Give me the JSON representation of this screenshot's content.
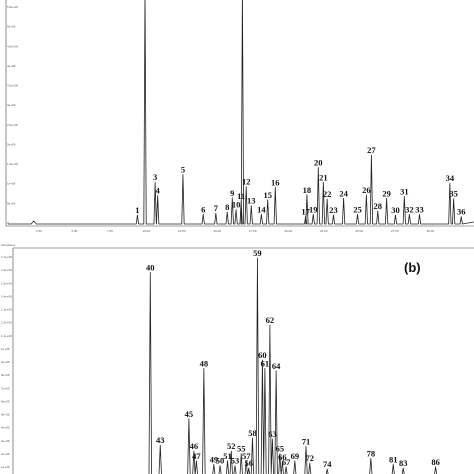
{
  "chart_data": [
    {
      "type": "line",
      "panel": "a",
      "panel_label": "",
      "y_tick_labels": [
        "5.5e+06",
        "5e+06",
        "4.5e+06",
        "4e+06",
        "3.5e+06",
        "3e+06",
        "2.5e+06",
        "2e+06",
        "1.5e+06",
        "1e+06",
        "5e+05",
        "0"
      ],
      "x_tick_labels": [
        "2.50",
        "5.00",
        "7.50",
        "10.00",
        "12.50",
        "15.00",
        "17.50",
        "20.00",
        "22.50",
        "25.00",
        "27.50",
        "30.00"
      ],
      "xlim": [
        0,
        32
      ],
      "ylim": [
        0,
        5800000
      ],
      "peaks": [
        {
          "label": "1",
          "x": 9.6,
          "y": 280000
        },
        {
          "label": "",
          "x": 10.2,
          "y": 9999999
        },
        {
          "label": "3",
          "x": 11.0,
          "y": 1130000
        },
        {
          "label": "4",
          "x": 11.2,
          "y": 780000
        },
        {
          "label": "5",
          "x": 13.2,
          "y": 1320000
        },
        {
          "label": "6",
          "x": 14.8,
          "y": 300000
        },
        {
          "label": "7",
          "x": 15.8,
          "y": 330000
        },
        {
          "label": "8",
          "x": 16.7,
          "y": 360000
        },
        {
          "label": "9",
          "x": 17.1,
          "y": 720000
        },
        {
          "label": "10",
          "x": 17.4,
          "y": 420000
        },
        {
          "label": "",
          "x": 17.9,
          "y": 9999999
        },
        {
          "label": "11",
          "x": 17.8,
          "y": 640000
        },
        {
          "label": "12",
          "x": 18.2,
          "y": 1010000
        },
        {
          "label": "13",
          "x": 18.6,
          "y": 520000
        },
        {
          "label": "14",
          "x": 19.4,
          "y": 300000
        },
        {
          "label": "15",
          "x": 19.9,
          "y": 670000
        },
        {
          "label": "16",
          "x": 20.5,
          "y": 990000
        },
        {
          "label": "17",
          "x": 22.9,
          "y": 250000
        },
        {
          "label": "18",
          "x": 23.0,
          "y": 800000
        },
        {
          "label": "19",
          "x": 23.5,
          "y": 300000
        },
        {
          "label": "20",
          "x": 23.9,
          "y": 1500000
        },
        {
          "label": "21",
          "x": 24.3,
          "y": 1120000
        },
        {
          "label": "22",
          "x": 24.6,
          "y": 690000
        },
        {
          "label": "23",
          "x": 25.1,
          "y": 280000
        },
        {
          "label": "24",
          "x": 25.9,
          "y": 710000
        },
        {
          "label": "25",
          "x": 27.0,
          "y": 300000
        },
        {
          "label": "26",
          "x": 27.7,
          "y": 800000
        },
        {
          "label": "27",
          "x": 28.1,
          "y": 1820000
        },
        {
          "label": "28",
          "x": 28.6,
          "y": 380000
        },
        {
          "label": "29",
          "x": 29.3,
          "y": 710000
        },
        {
          "label": "30",
          "x": 30.0,
          "y": 280000
        },
        {
          "label": "31",
          "x": 30.7,
          "y": 760000
        },
        {
          "label": "32",
          "x": 31.1,
          "y": 300000
        },
        {
          "label": "33",
          "x": 31.9,
          "y": 300000
        },
        {
          "label": "34",
          "x": 34.3,
          "y": 1100000
        },
        {
          "label": "35",
          "x": 34.6,
          "y": 700000
        },
        {
          "label": "36",
          "x": 35.2,
          "y": 240000
        }
      ]
    },
    {
      "type": "line",
      "panel": "b",
      "panel_label": "(b)",
      "y_tick_labels": [
        "1.7e+06",
        "1.6e+06",
        "1.5e+06",
        "1.4e+06",
        "1.3e+06",
        "1.2e+06",
        "1.1e+06",
        "1e+06",
        "9e+05",
        "8e+05",
        "7e+05",
        "6e+05",
        "5e+05",
        "4e+05",
        "3e+05",
        "2e+05",
        "1e+05"
      ],
      "corner_note": "Abundance",
      "ylim": [
        0,
        1800000
      ],
      "peaks": [
        {
          "label": "40",
          "x": 11.5,
          "y": 1680000
        },
        {
          "label": "43",
          "x": 12.3,
          "y": 240000
        },
        {
          "label": "45",
          "x": 14.6,
          "y": 460000
        },
        {
          "label": "46",
          "x": 15.0,
          "y": 190000
        },
        {
          "label": "47",
          "x": 15.2,
          "y": 110000
        },
        {
          "label": "48",
          "x": 15.8,
          "y": 880000
        },
        {
          "label": "49",
          "x": 16.6,
          "y": 80000
        },
        {
          "label": "50",
          "x": 17.1,
          "y": 70000
        },
        {
          "label": "51",
          "x": 17.7,
          "y": 110000
        },
        {
          "label": "52",
          "x": 18.0,
          "y": 190000
        },
        {
          "label": "53",
          "x": 18.3,
          "y": 70000
        },
        {
          "label": "55",
          "x": 18.8,
          "y": 170000
        },
        {
          "label": "56",
          "x": 19.4,
          "y": 50000
        },
        {
          "label": "57",
          "x": 19.2,
          "y": 110000
        },
        {
          "label": "58",
          "x": 19.7,
          "y": 300000
        },
        {
          "label": "59",
          "x": 20.1,
          "y": 1800000
        },
        {
          "label": "60",
          "x": 20.5,
          "y": 950000
        },
        {
          "label": "61",
          "x": 20.7,
          "y": 880000
        },
        {
          "label": "62",
          "x": 21.1,
          "y": 1240000
        },
        {
          "label": "63",
          "x": 21.3,
          "y": 290000
        },
        {
          "label": "64",
          "x": 21.6,
          "y": 860000
        },
        {
          "label": "65",
          "x": 21.9,
          "y": 170000
        },
        {
          "label": "66",
          "x": 22.1,
          "y": 100000
        },
        {
          "label": "67",
          "x": 22.4,
          "y": 60000
        },
        {
          "label": "69",
          "x": 23.1,
          "y": 110000
        },
        {
          "label": "71",
          "x": 24.0,
          "y": 230000
        },
        {
          "label": "72",
          "x": 24.3,
          "y": 90000
        },
        {
          "label": "74",
          "x": 25.7,
          "y": 40000
        },
        {
          "label": "78",
          "x": 29.2,
          "y": 130000
        },
        {
          "label": "81",
          "x": 31.0,
          "y": 80000
        },
        {
          "label": "83",
          "x": 31.8,
          "y": 50000
        },
        {
          "label": "86",
          "x": 34.4,
          "y": 60000
        }
      ]
    }
  ]
}
